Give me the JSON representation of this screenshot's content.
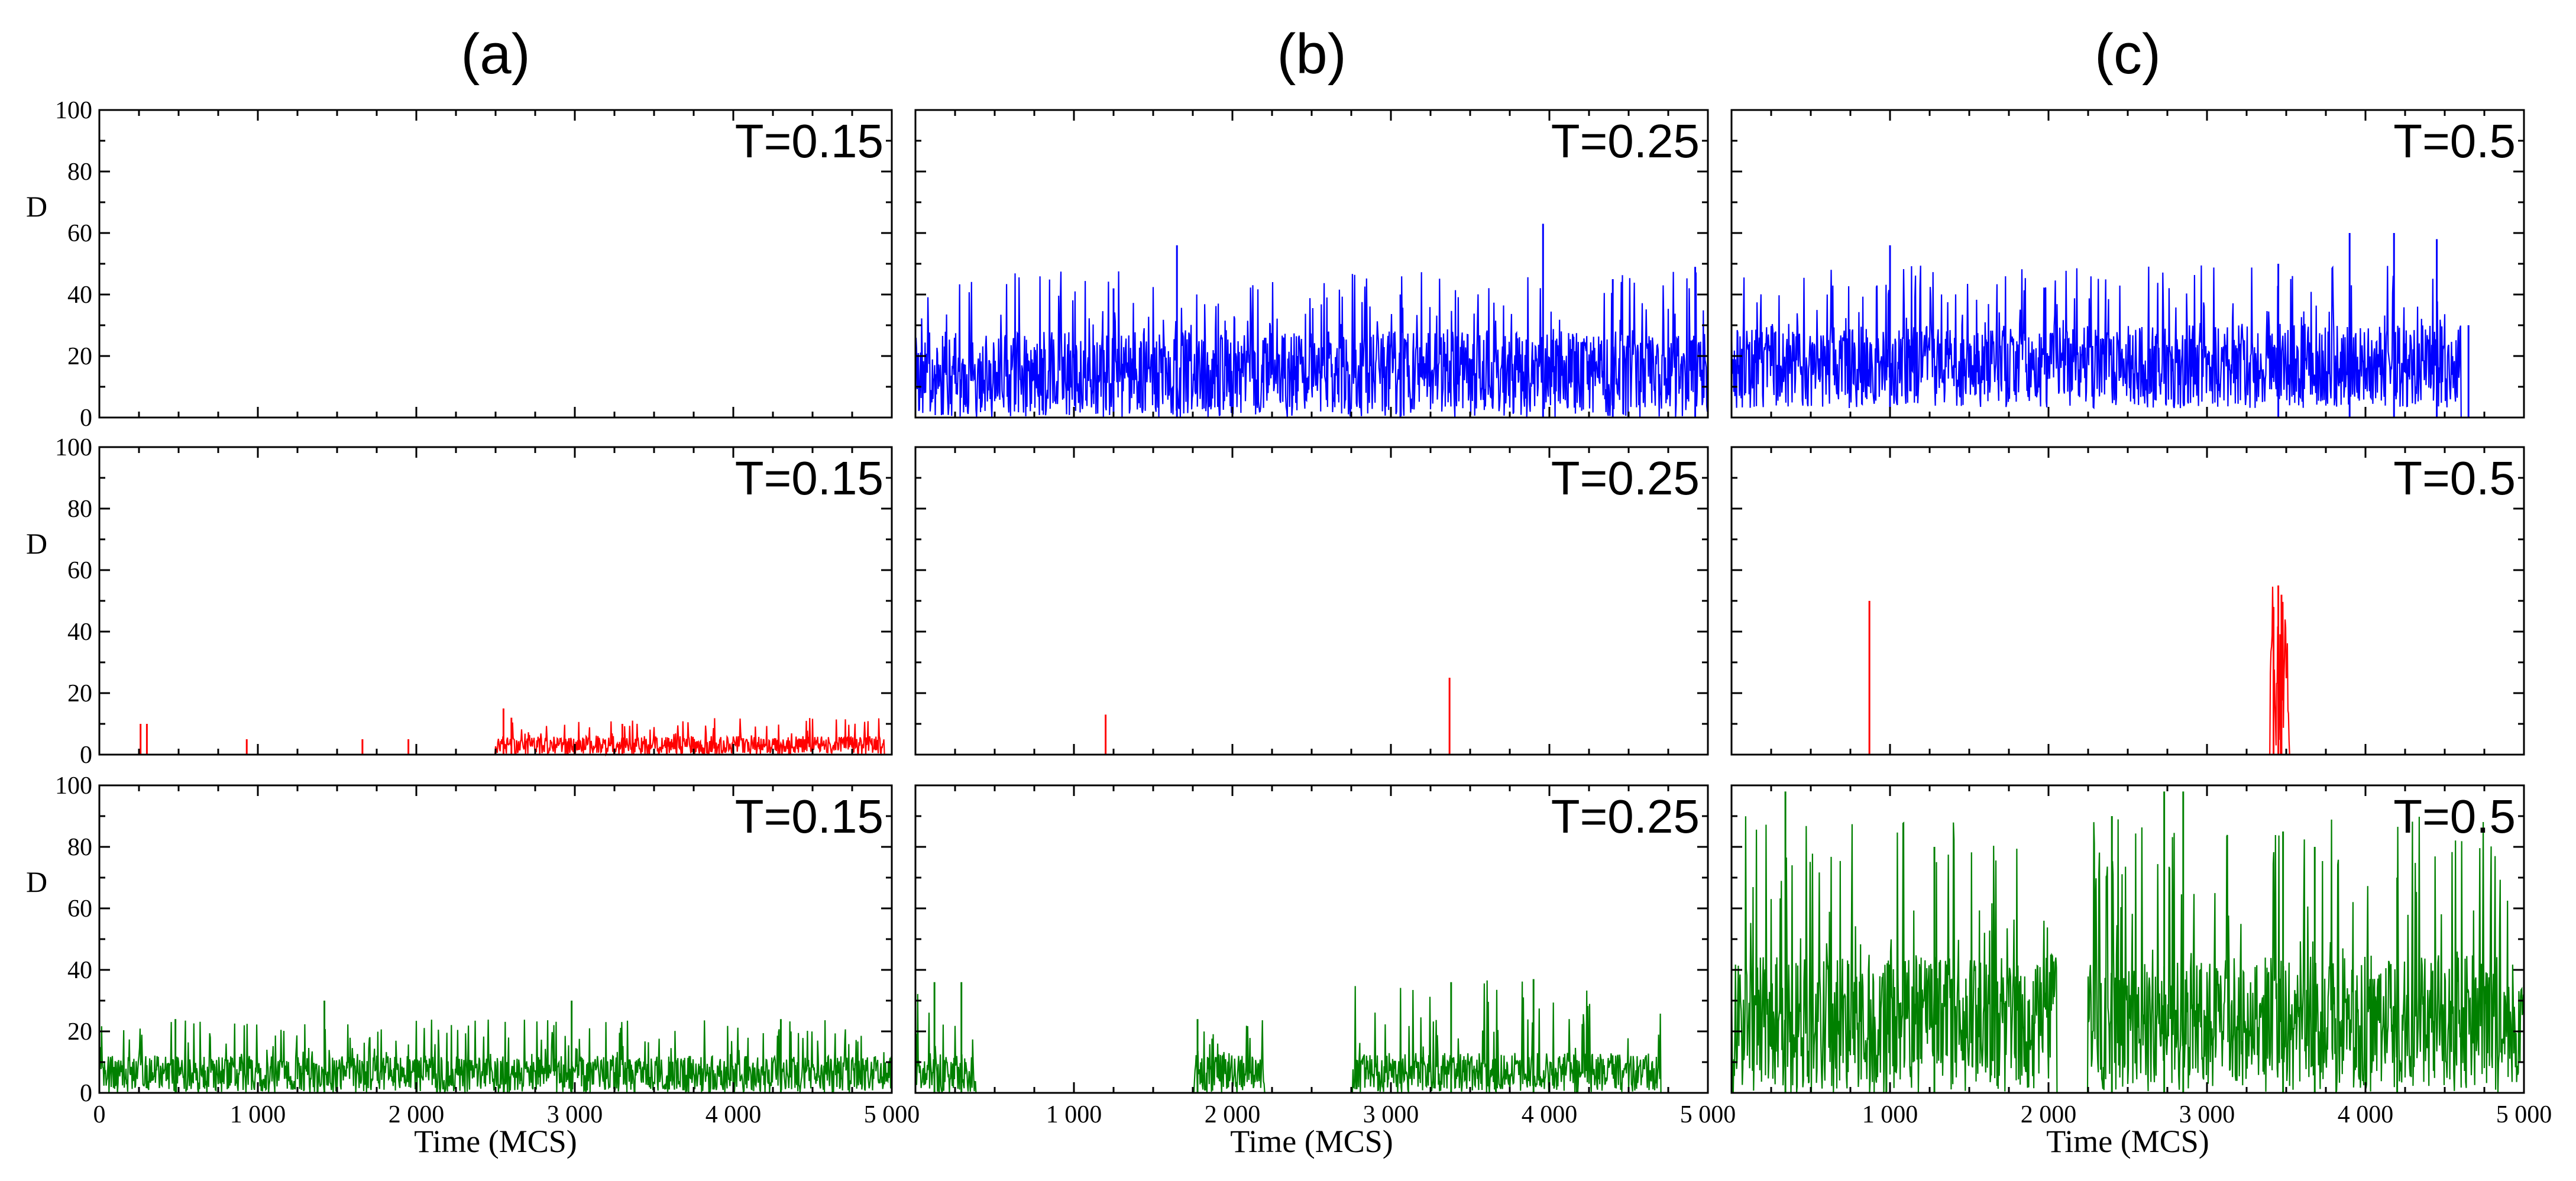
{
  "chart_data": {
    "type": "line",
    "layout": "3x3 grid of time-series panels",
    "column_titles": [
      "(a)",
      "(b)",
      "(c)"
    ],
    "xlabel": "Time (MCS)",
    "ylabel": "D",
    "xlim": [
      0,
      5000
    ],
    "ylim": [
      0,
      100
    ],
    "xticks": [
      0,
      1000,
      2000,
      3000,
      4000,
      5000
    ],
    "xtick_labels": [
      "0",
      "1 000",
      "2 000",
      "3 000",
      "4 000",
      "5 000"
    ],
    "yticks": [
      0,
      20,
      40,
      60,
      80,
      100
    ],
    "ytick_labels": [
      "0",
      "20",
      "40",
      "60",
      "80",
      "100"
    ],
    "row_colors": [
      "#0000ff",
      "#ff0000",
      "#008000"
    ],
    "panels": [
      {
        "row": 0,
        "col": 0,
        "label": "T=0.15",
        "color": "#0000ff",
        "baseline": 0,
        "peaks": [],
        "bursts": []
      },
      {
        "row": 0,
        "col": 1,
        "label": "T=0.25",
        "color": "#0000ff",
        "baseline": 0,
        "peaks": [
          [
            1250,
            42
          ],
          [
            1650,
            56
          ],
          [
            3060,
            40
          ],
          [
            3960,
            63
          ],
          [
            4400,
            45
          ],
          [
            4920,
            49
          ]
        ],
        "bursts": [
          {
            "start": 0,
            "end": 5000,
            "high": 28,
            "spike_max": 48,
            "floor": 0
          }
        ]
      },
      {
        "row": 0,
        "col": 2,
        "label": "T=0.5",
        "color": "#0000ff",
        "baseline": 0,
        "peaks": [
          [
            1000,
            56
          ],
          [
            3450,
            50
          ],
          [
            3900,
            60
          ],
          [
            4180,
            60
          ],
          [
            4450,
            58
          ],
          [
            4650,
            30
          ]
        ],
        "bursts": [
          {
            "start": 0,
            "end": 4600,
            "high": 30,
            "spike_max": 50,
            "floor": 3
          }
        ]
      },
      {
        "row": 1,
        "col": 0,
        "label": "T=0.15",
        "color": "#ff0000",
        "baseline": 0,
        "peaks": [
          [
            260,
            10
          ],
          [
            300,
            10
          ],
          [
            930,
            5
          ],
          [
            1660,
            5
          ],
          [
            1950,
            5
          ],
          [
            2550,
            15
          ],
          [
            2600,
            12
          ],
          [
            3300,
            10
          ]
        ],
        "bursts": [
          {
            "start": 2500,
            "end": 4950,
            "high": 6,
            "spike_max": 12,
            "floor": 0
          }
        ]
      },
      {
        "row": 1,
        "col": 1,
        "label": "T=0.25",
        "color": "#ff0000",
        "baseline": 0,
        "peaks": [
          [
            1200,
            13
          ],
          [
            3370,
            25
          ]
        ],
        "bursts": []
      },
      {
        "row": 1,
        "col": 2,
        "label": "T=0.5",
        "color": "#ff0000",
        "baseline": 0,
        "peaks": [
          [
            870,
            50
          ],
          [
            3450,
            55
          ],
          [
            3470,
            52
          ],
          [
            3420,
            48
          ]
        ],
        "bursts": [
          {
            "start": 3400,
            "end": 3520,
            "high": 45,
            "spike_max": 55,
            "floor": 0
          }
        ]
      },
      {
        "row": 2,
        "col": 0,
        "label": "T=0.15",
        "color": "#008000",
        "baseline": 0,
        "peaks": [
          [
            480,
            24
          ],
          [
            1420,
            30
          ],
          [
            2980,
            30
          ],
          [
            4300,
            24
          ]
        ],
        "bursts": [
          {
            "start": 0,
            "end": 5000,
            "high": 12,
            "spike_max": 24,
            "floor": 0
          }
        ]
      },
      {
        "row": 2,
        "col": 1,
        "label": "T=0.25",
        "color": "#008000",
        "baseline": 0,
        "peaks": [
          [
            120,
            36
          ],
          [
            290,
            36
          ],
          [
            1780,
            24
          ],
          [
            3900,
            37
          ],
          [
            3380,
            36
          ]
        ],
        "bursts": [
          {
            "start": 0,
            "end": 380,
            "high": 13,
            "spike_max": 36,
            "floor": 0
          },
          {
            "start": 1760,
            "end": 2200,
            "high": 13,
            "spike_max": 24,
            "floor": 0
          },
          {
            "start": 2760,
            "end": 4700,
            "high": 13,
            "spike_max": 37,
            "floor": 0
          }
        ]
      },
      {
        "row": 2,
        "col": 2,
        "label": "T=0.5",
        "color": "#008000",
        "baseline": 0,
        "peaks": [
          [
            340,
            98
          ],
          [
            1280,
            80
          ],
          [
            2400,
            90
          ],
          [
            2730,
            98
          ],
          [
            2850,
            98
          ],
          [
            3480,
            85
          ],
          [
            3680,
            80
          ],
          [
            4200,
            70
          ]
        ],
        "bursts": [
          {
            "start": 0,
            "end": 2050,
            "high": 45,
            "spike_max": 90,
            "floor": 0
          },
          {
            "start": 2250,
            "end": 5000,
            "high": 45,
            "spike_max": 90,
            "floor": 0
          }
        ]
      }
    ]
  }
}
